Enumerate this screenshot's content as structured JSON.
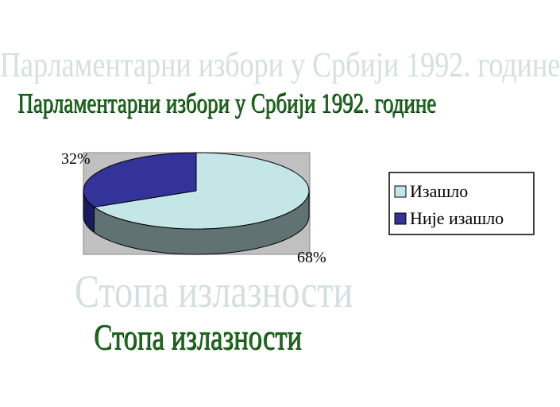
{
  "ghost_title": "Парламентарни избори у Србији 1992. године",
  "ghost_subtitle": "Стопа излазности",
  "chart_data": {
    "type": "pie",
    "three_d": true,
    "title": "Парламентарни избори у Србији 1992. године",
    "subtitle": "Стопа излазности",
    "legend_position": "right",
    "slices": [
      {
        "name": "Изашло",
        "value": 68,
        "label": "68%",
        "color": "#c4e6e6",
        "side_color": "#607272"
      },
      {
        "name": "Није изашло",
        "value": 32,
        "label": "32%",
        "color": "#333399",
        "side_color": "#1a1a5e"
      }
    ],
    "plot_background": "#c0c0c0"
  }
}
